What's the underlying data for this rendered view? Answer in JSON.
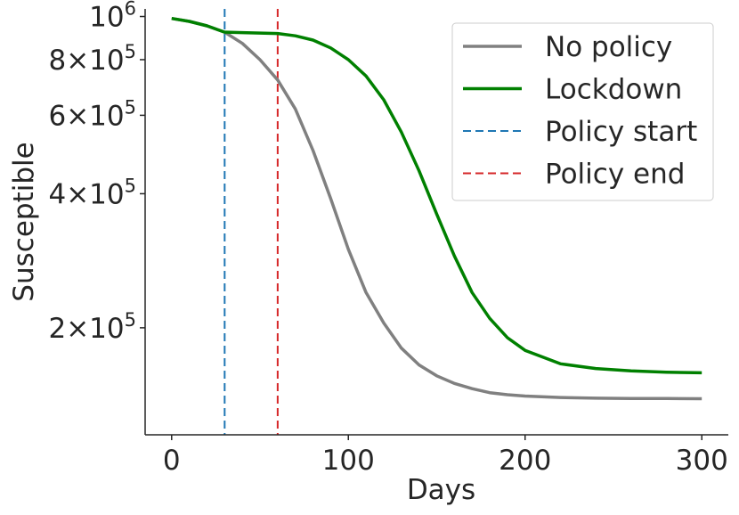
{
  "chart_data": {
    "type": "line",
    "xlabel": "Days",
    "ylabel": "Susceptible",
    "xlim": [
      -15,
      315
    ],
    "ylim": [
      115000,
      1040000
    ],
    "y_scale": "log",
    "x_ticks": [
      0,
      100,
      200,
      300
    ],
    "x_tick_labels": [
      "0",
      "100",
      "200",
      "300"
    ],
    "y_ticks": [
      {
        "value": 200000,
        "mantissa": "2×10",
        "exp": "5"
      },
      {
        "value": 400000,
        "mantissa": "4×10",
        "exp": "5"
      },
      {
        "value": 600000,
        "mantissa": "6×10",
        "exp": "5"
      },
      {
        "value": 800000,
        "mantissa": "8×10",
        "exp": "5"
      },
      {
        "value": 1000000,
        "mantissa": "10",
        "exp": "6"
      }
    ],
    "grid": false,
    "legend_position": "top-right",
    "series": [
      {
        "name": "No policy",
        "color": "#808080",
        "style": "solid",
        "points": [
          [
            0,
            990000
          ],
          [
            10,
            975000
          ],
          [
            20,
            953000
          ],
          [
            30,
            922000
          ],
          [
            40,
            870000
          ],
          [
            50,
            800000
          ],
          [
            60,
            720000
          ],
          [
            70,
            620000
          ],
          [
            80,
            500000
          ],
          [
            90,
            390000
          ],
          [
            100,
            300000
          ],
          [
            110,
            240000
          ],
          [
            120,
            205000
          ],
          [
            130,
            180000
          ],
          [
            140,
            165000
          ],
          [
            150,
            156000
          ],
          [
            160,
            150000
          ],
          [
            170,
            146000
          ],
          [
            180,
            143000
          ],
          [
            190,
            141500
          ],
          [
            200,
            140500
          ],
          [
            220,
            139500
          ],
          [
            240,
            139000
          ],
          [
            260,
            138800
          ],
          [
            280,
            138700
          ],
          [
            300,
            138600
          ]
        ]
      },
      {
        "name": "Lockdown",
        "color": "#008000",
        "style": "solid",
        "points": [
          [
            0,
            990000
          ],
          [
            10,
            975000
          ],
          [
            20,
            953000
          ],
          [
            30,
            922000
          ],
          [
            40,
            920000
          ],
          [
            50,
            918000
          ],
          [
            60,
            916000
          ],
          [
            70,
            905000
          ],
          [
            80,
            885000
          ],
          [
            90,
            850000
          ],
          [
            100,
            800000
          ],
          [
            110,
            735000
          ],
          [
            120,
            650000
          ],
          [
            130,
            550000
          ],
          [
            140,
            450000
          ],
          [
            150,
            360000
          ],
          [
            160,
            290000
          ],
          [
            170,
            240000
          ],
          [
            180,
            210000
          ],
          [
            190,
            190000
          ],
          [
            200,
            178000
          ],
          [
            220,
            166000
          ],
          [
            240,
            162000
          ],
          [
            260,
            160000
          ],
          [
            280,
            159000
          ],
          [
            300,
            158500
          ]
        ]
      },
      {
        "name": "Policy start",
        "color": "#1f77b4",
        "style": "dashed",
        "vline_x": 30
      },
      {
        "name": "Policy end",
        "color": "#d62728",
        "style": "dashed",
        "vline_x": 60
      }
    ]
  }
}
